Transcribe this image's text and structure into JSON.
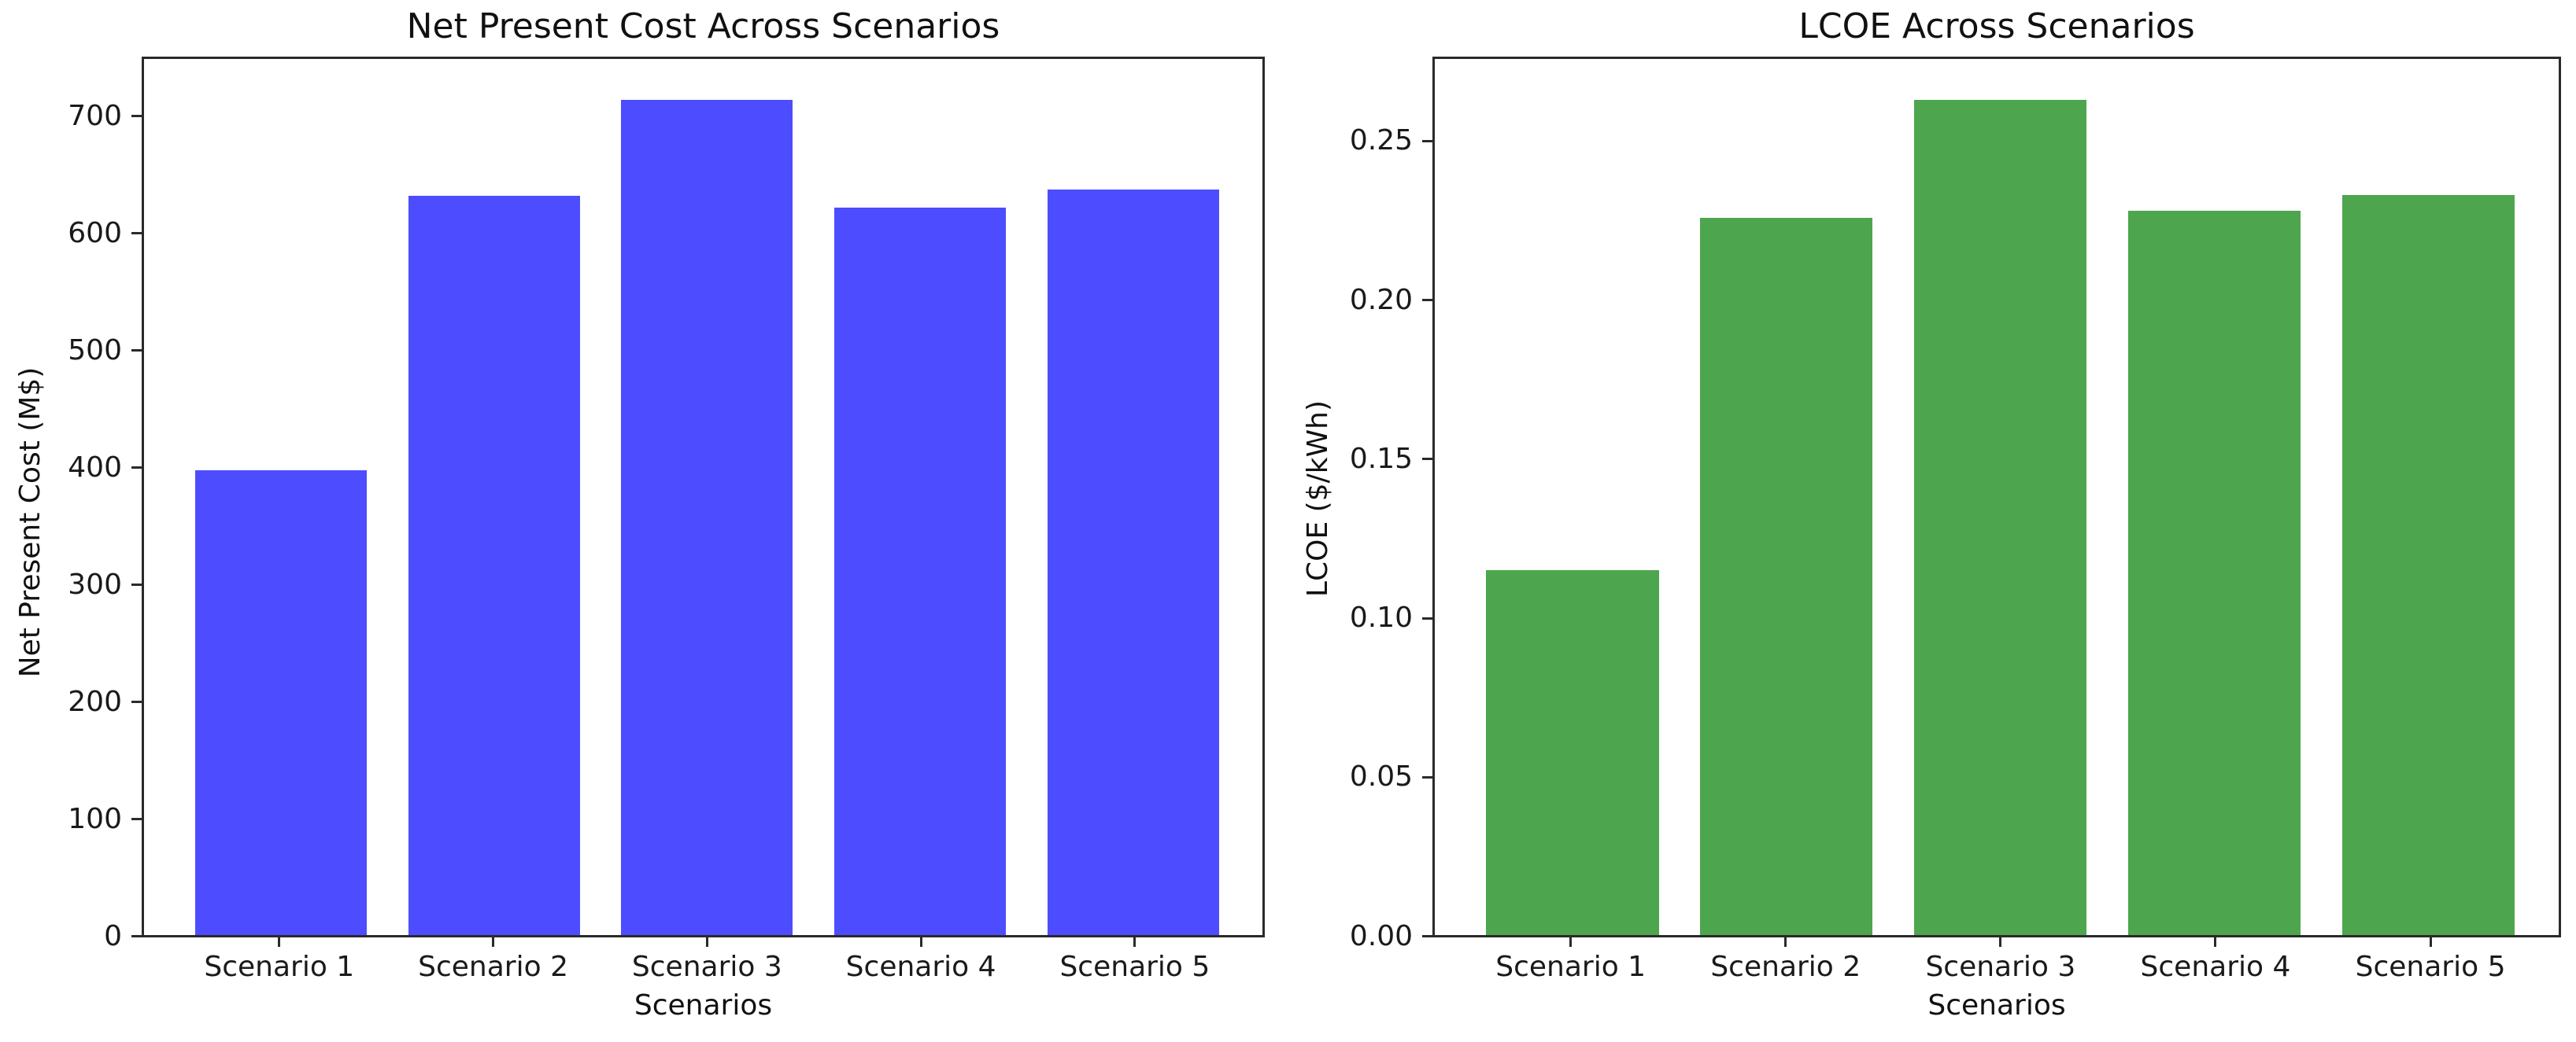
{
  "figure": {
    "background": "#ffffff",
    "text_color": "#1a1a1a",
    "spine_color": "#2a2a2a"
  },
  "chart_data": [
    {
      "type": "bar",
      "title": "Net Present Cost Across Scenarios",
      "xlabel": "Scenarios",
      "ylabel": "Net Present Cost (M$)",
      "bar_color": "#4d4dff",
      "categories": [
        "Scenario 1",
        "Scenario 2",
        "Scenario 3",
        "Scenario 4",
        "Scenario 5"
      ],
      "values": [
        398,
        632,
        714,
        622,
        637
      ],
      "ylim": [
        0,
        749.7
      ],
      "yticks": [
        0,
        100,
        200,
        300,
        400,
        500,
        600,
        700
      ],
      "ytick_labels": [
        "0",
        "100",
        "200",
        "300",
        "400",
        "500",
        "600",
        "700"
      ],
      "grid": false,
      "legend": null
    },
    {
      "type": "bar",
      "title": "LCOE Across Scenarios",
      "xlabel": "Scenarios",
      "ylabel": "LCOE ($/kWh)",
      "bar_color": "#4da64d",
      "categories": [
        "Scenario 1",
        "Scenario 2",
        "Scenario 3",
        "Scenario 4",
        "Scenario 5"
      ],
      "values": [
        0.115,
        0.226,
        0.263,
        0.228,
        0.233
      ],
      "ylim": [
        0,
        0.2762
      ],
      "yticks": [
        0.0,
        0.05,
        0.1,
        0.15,
        0.2,
        0.25
      ],
      "ytick_labels": [
        "0.00",
        "0.05",
        "0.10",
        "0.15",
        "0.20",
        "0.25"
      ],
      "grid": false,
      "legend": null
    }
  ]
}
